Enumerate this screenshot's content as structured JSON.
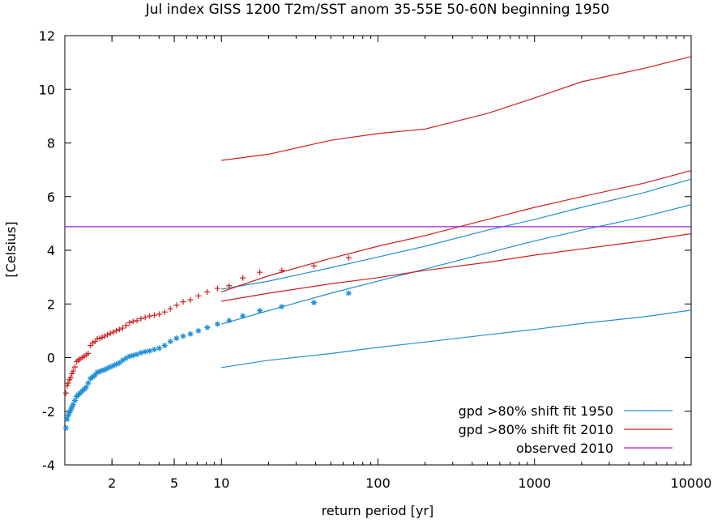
{
  "chart_data": {
    "type": "line",
    "title": "Jul index GISS 1200 T2m/SST anom 35-55E 50-60N beginning 1950",
    "xlabel": "return period [yr]",
    "ylabel": "[Celsius]",
    "x_scale": "log",
    "xlim": [
      1,
      10000
    ],
    "ylim": [
      -4,
      12
    ],
    "x_ticks": [
      {
        "value": 2,
        "label": "2"
      },
      {
        "value": 5,
        "label": "5"
      },
      {
        "value": 10,
        "label": "10"
      },
      {
        "value": 100,
        "label": "100"
      },
      {
        "value": 1000,
        "label": "1000"
      },
      {
        "value": 10000,
        "label": "10000"
      }
    ],
    "y_ticks": [
      {
        "value": -4,
        "label": "-4"
      },
      {
        "value": -2,
        "label": "-2"
      },
      {
        "value": 0,
        "label": "0"
      },
      {
        "value": 2,
        "label": "2"
      },
      {
        "value": 4,
        "label": "4"
      },
      {
        "value": 6,
        "label": "6"
      },
      {
        "value": 8,
        "label": "8"
      },
      {
        "value": 10,
        "label": "10"
      },
      {
        "value": 12,
        "label": "12"
      }
    ],
    "grid": false,
    "legend_position": "bottom-right",
    "legend": [
      {
        "label": "gpd >80% shift fit 1950",
        "color": "#1f8fd6"
      },
      {
        "label": "gpd >80% shift fit 2010",
        "color": "#cc1f1f"
      },
      {
        "label": "observed 2010",
        "color": "#a020d0"
      }
    ],
    "colors": {
      "blue": "#1f8fd6",
      "red": "#cc1f1f",
      "purple": "#a020d0"
    },
    "series": [
      {
        "legend_index": 0,
        "style": "line",
        "color": "#1f8fd6",
        "points": [
          [
            10,
            2.55
          ],
          [
            20,
            2.85
          ],
          [
            50,
            3.35
          ],
          [
            100,
            3.75
          ],
          [
            200,
            4.15
          ],
          [
            500,
            4.75
          ],
          [
            1000,
            5.15
          ],
          [
            2000,
            5.6
          ],
          [
            5000,
            6.15
          ],
          [
            10000,
            6.65
          ]
        ]
      },
      {
        "legend_index": 0,
        "style": "line",
        "color": "#1f8fd6",
        "points": [
          [
            10,
            1.25
          ],
          [
            20,
            1.75
          ],
          [
            50,
            2.4
          ],
          [
            100,
            2.85
          ],
          [
            200,
            3.3
          ],
          [
            500,
            3.9
          ],
          [
            1000,
            4.35
          ],
          [
            2000,
            4.75
          ],
          [
            5000,
            5.25
          ],
          [
            10000,
            5.7
          ]
        ]
      },
      {
        "legend_index": 0,
        "style": "line",
        "color": "#1f8fd6",
        "points": [
          [
            10,
            -0.37
          ],
          [
            20,
            -0.1
          ],
          [
            50,
            0.15
          ],
          [
            100,
            0.38
          ],
          [
            200,
            0.58
          ],
          [
            500,
            0.85
          ],
          [
            1000,
            1.05
          ],
          [
            2000,
            1.27
          ],
          [
            5000,
            1.52
          ],
          [
            10000,
            1.77
          ]
        ]
      },
      {
        "legend_index": 1,
        "style": "line",
        "color": "#cc1f1f",
        "points": [
          [
            10,
            7.35
          ],
          [
            20,
            7.58
          ],
          [
            50,
            8.1
          ],
          [
            100,
            8.35
          ],
          [
            200,
            8.52
          ],
          [
            500,
            9.1
          ],
          [
            1000,
            9.68
          ],
          [
            2000,
            10.28
          ],
          [
            5000,
            10.78
          ],
          [
            10000,
            11.22
          ]
        ]
      },
      {
        "legend_index": 1,
        "style": "line",
        "color": "#cc1f1f",
        "points": [
          [
            10,
            2.45
          ],
          [
            20,
            3.05
          ],
          [
            50,
            3.7
          ],
          [
            100,
            4.15
          ],
          [
            200,
            4.55
          ],
          [
            500,
            5.15
          ],
          [
            1000,
            5.6
          ],
          [
            2000,
            6.0
          ],
          [
            5000,
            6.5
          ],
          [
            10000,
            6.97
          ]
        ]
      },
      {
        "legend_index": 1,
        "style": "line",
        "color": "#cc1f1f",
        "points": [
          [
            10,
            2.1
          ],
          [
            20,
            2.4
          ],
          [
            50,
            2.75
          ],
          [
            100,
            2.98
          ],
          [
            200,
            3.25
          ],
          [
            500,
            3.55
          ],
          [
            1000,
            3.82
          ],
          [
            2000,
            4.05
          ],
          [
            5000,
            4.35
          ],
          [
            10000,
            4.62
          ]
        ]
      },
      {
        "legend_index": 2,
        "style": "line",
        "color": "#a020d0",
        "points": [
          [
            1,
            4.88
          ],
          [
            10000,
            4.88
          ]
        ]
      },
      {
        "style": "points",
        "marker": "+",
        "color": "#cc1f1f",
        "points": [
          [
            1.016,
            -1.32
          ],
          [
            1.035,
            -1.05
          ],
          [
            1.05,
            -0.95
          ],
          [
            1.07,
            -0.82
          ],
          [
            1.09,
            -0.75
          ],
          [
            1.11,
            -0.6
          ],
          [
            1.13,
            -0.5
          ],
          [
            1.16,
            -0.35
          ],
          [
            1.19,
            -0.15
          ],
          [
            1.22,
            -0.1
          ],
          [
            1.25,
            -0.05
          ],
          [
            1.29,
            0.0
          ],
          [
            1.33,
            0.05
          ],
          [
            1.37,
            0.1
          ],
          [
            1.41,
            0.15
          ],
          [
            1.46,
            0.45
          ],
          [
            1.51,
            0.55
          ],
          [
            1.56,
            0.6
          ],
          [
            1.61,
            0.7
          ],
          [
            1.67,
            0.72
          ],
          [
            1.73,
            0.75
          ],
          [
            1.8,
            0.8
          ],
          [
            1.87,
            0.85
          ],
          [
            1.95,
            0.9
          ],
          [
            2.04,
            0.95
          ],
          [
            2.13,
            1.0
          ],
          [
            2.23,
            1.05
          ],
          [
            2.34,
            1.1
          ],
          [
            2.46,
            1.2
          ],
          [
            2.59,
            1.3
          ],
          [
            2.73,
            1.35
          ],
          [
            2.89,
            1.38
          ],
          [
            3.06,
            1.45
          ],
          [
            3.26,
            1.5
          ],
          [
            3.48,
            1.55
          ],
          [
            3.73,
            1.58
          ],
          [
            4.01,
            1.62
          ],
          [
            4.34,
            1.7
          ],
          [
            4.72,
            1.82
          ],
          [
            5.17,
            1.95
          ],
          [
            5.7,
            2.08
          ],
          [
            6.34,
            2.15
          ],
          [
            7.13,
            2.3
          ],
          [
            8.13,
            2.45
          ],
          [
            9.44,
            2.58
          ],
          [
            11.2,
            2.68
          ],
          [
            13.7,
            2.97
          ],
          [
            17.6,
            3.18
          ],
          [
            24.3,
            3.25
          ],
          [
            39.0,
            3.42
          ],
          [
            65.0,
            3.72
          ]
        ]
      },
      {
        "style": "points",
        "marker": "*",
        "color": "#1f8fd6",
        "points": [
          [
            1.016,
            -2.62
          ],
          [
            1.035,
            -2.3
          ],
          [
            1.05,
            -2.15
          ],
          [
            1.07,
            -2.05
          ],
          [
            1.09,
            -1.95
          ],
          [
            1.11,
            -1.85
          ],
          [
            1.13,
            -1.75
          ],
          [
            1.16,
            -1.6
          ],
          [
            1.19,
            -1.45
          ],
          [
            1.22,
            -1.38
          ],
          [
            1.25,
            -1.33
          ],
          [
            1.29,
            -1.25
          ],
          [
            1.33,
            -1.18
          ],
          [
            1.37,
            -1.1
          ],
          [
            1.41,
            -0.95
          ],
          [
            1.46,
            -0.78
          ],
          [
            1.51,
            -0.72
          ],
          [
            1.56,
            -0.65
          ],
          [
            1.61,
            -0.55
          ],
          [
            1.67,
            -0.52
          ],
          [
            1.73,
            -0.48
          ],
          [
            1.8,
            -0.45
          ],
          [
            1.87,
            -0.4
          ],
          [
            1.95,
            -0.35
          ],
          [
            2.04,
            -0.3
          ],
          [
            2.13,
            -0.25
          ],
          [
            2.23,
            -0.2
          ],
          [
            2.34,
            -0.1
          ],
          [
            2.46,
            -0.02
          ],
          [
            2.59,
            0.05
          ],
          [
            2.73,
            0.08
          ],
          [
            2.89,
            0.12
          ],
          [
            3.06,
            0.18
          ],
          [
            3.26,
            0.22
          ],
          [
            3.48,
            0.25
          ],
          [
            3.73,
            0.3
          ],
          [
            4.01,
            0.35
          ],
          [
            4.34,
            0.45
          ],
          [
            4.72,
            0.6
          ],
          [
            5.17,
            0.72
          ],
          [
            5.7,
            0.8
          ],
          [
            6.34,
            0.88
          ],
          [
            7.13,
            1.0
          ],
          [
            8.13,
            1.12
          ],
          [
            9.44,
            1.25
          ],
          [
            11.2,
            1.38
          ],
          [
            13.7,
            1.55
          ],
          [
            17.6,
            1.75
          ],
          [
            24.3,
            1.9
          ],
          [
            39.0,
            2.05
          ],
          [
            65.0,
            2.4
          ]
        ]
      }
    ]
  }
}
